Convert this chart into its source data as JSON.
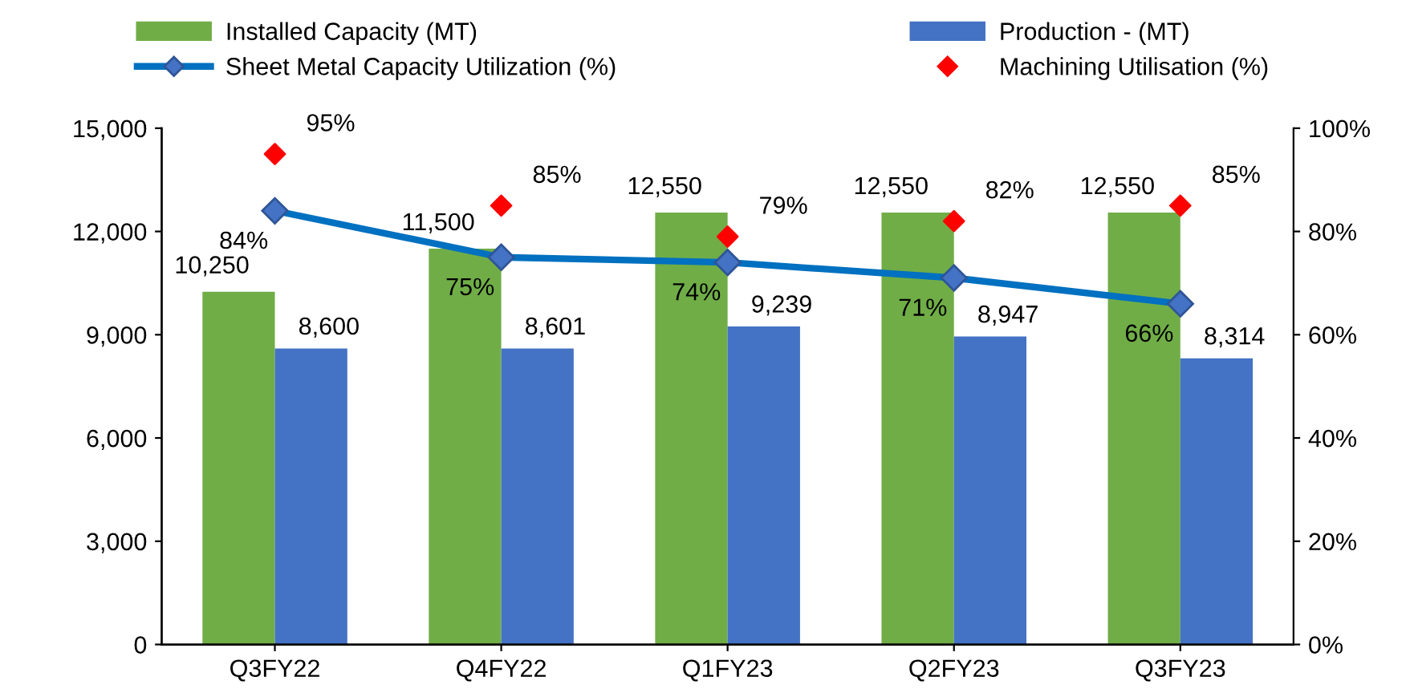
{
  "chart_data": {
    "type": "bar",
    "categories": [
      "Q3FY22",
      "Q4FY22",
      "Q1FY23",
      "Q2FY23",
      "Q3FY23"
    ],
    "series": [
      {
        "name": "Installed Capacity (MT)",
        "color": "#70ad47",
        "values": [
          10250,
          11500,
          12550,
          12550,
          12550
        ],
        "value_labels": [
          "10,250",
          "11,500",
          "12,550",
          "12,550",
          "12,550"
        ]
      },
      {
        "name": "Production - (MT)",
        "color": "#4472c4",
        "values": [
          8600,
          8601,
          9239,
          8947,
          8314
        ],
        "value_labels": [
          "8,600",
          "8,601",
          "9,239",
          "8,947",
          "8,314"
        ]
      },
      {
        "name": "Sheet Metal Capacity Utilization (%)",
        "type": "line",
        "axis": "y2",
        "color": "#0070c0",
        "marker": "diamond",
        "values": [
          84,
          75,
          74,
          71,
          66
        ],
        "value_labels": [
          "84%",
          "75%",
          "74%",
          "71%",
          "66%"
        ]
      },
      {
        "name": "Machining Utilisation (%)",
        "type": "scatter",
        "axis": "y2",
        "color": "#ff0000",
        "marker": "diamond",
        "values": [
          95,
          85,
          79,
          82,
          85
        ],
        "value_labels": [
          "95%",
          "85%",
          "79%",
          "82%",
          "85%"
        ]
      }
    ],
    "ylim": [
      0,
      15000
    ],
    "yticks": [
      0,
      {
        "value": 3000,
        "label": "3,000"
      },
      {
        "value": 6000,
        "label": "6,000"
      },
      {
        "value": 9000,
        "label": "9,000"
      },
      {
        "value": 12000,
        "label": "12,000"
      },
      {
        "value": 15000,
        "label": "15,000"
      }
    ],
    "y2lim": [
      0,
      100
    ],
    "y2ticks": [
      {
        "value": 0,
        "label": "0%"
      },
      {
        "value": 20,
        "label": "20%"
      },
      {
        "value": 40,
        "label": "40%"
      },
      {
        "value": 60,
        "label": "60%"
      },
      {
        "value": 80,
        "label": "80%"
      },
      {
        "value": 100,
        "label": "100%"
      }
    ],
    "grid": false,
    "legend": "top"
  }
}
